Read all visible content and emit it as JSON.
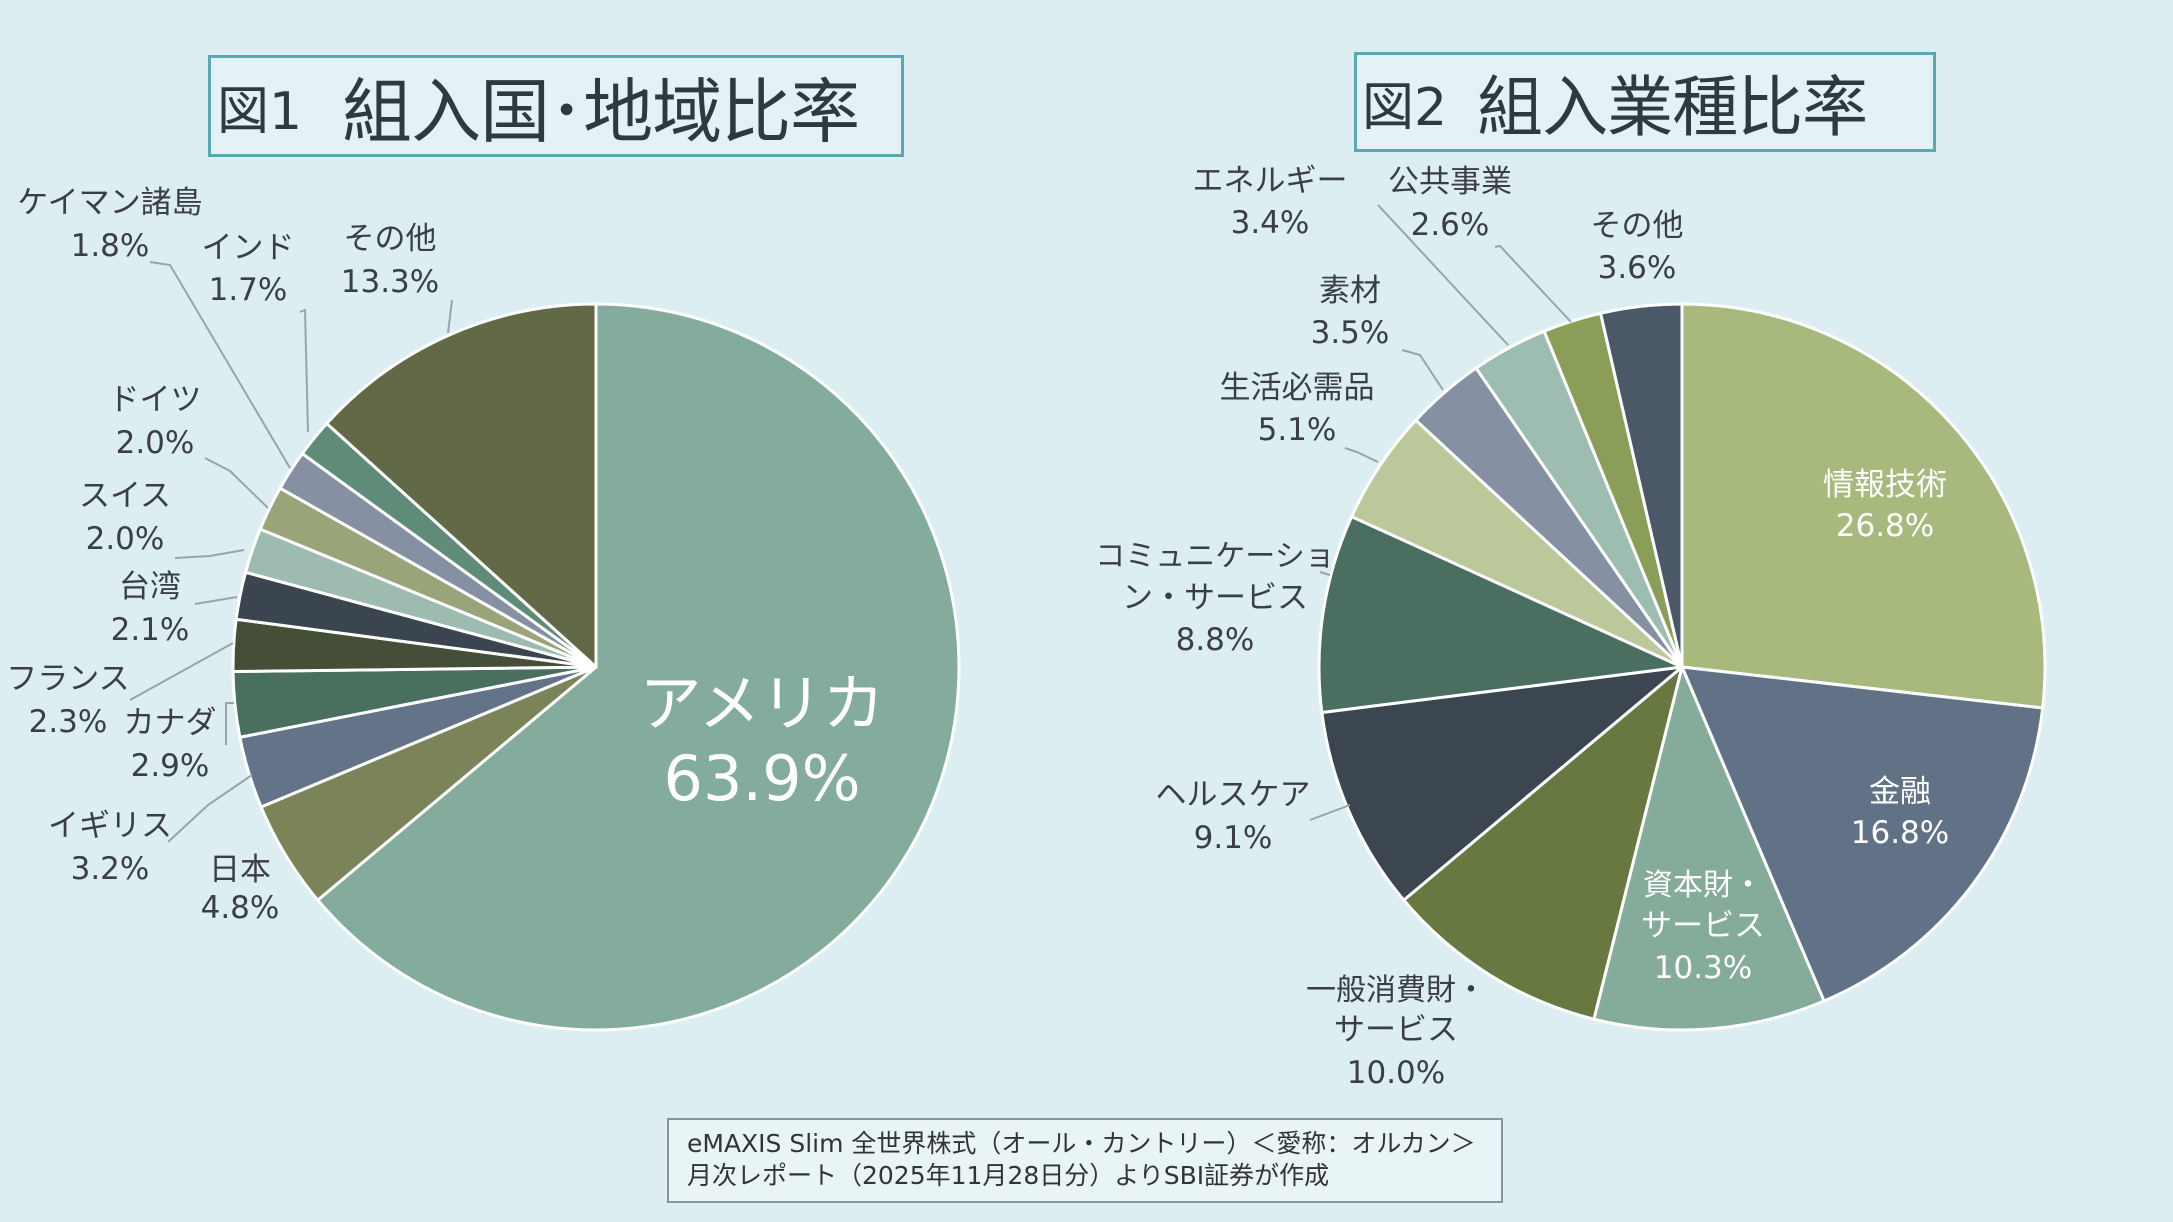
{
  "titles": {
    "chart1_prefix": "図1",
    "chart1_main": "組入国･地域比率",
    "chart2_prefix": "図2",
    "chart2_main": "組入業種比率"
  },
  "source": {
    "line1": "eMAXIS Slim 全世界株式（オール・カントリー）＜愛称：オルカン＞",
    "line2": "月次レポート（2025年11月28日分）よりSBI証券が作成"
  },
  "chart_data": [
    {
      "type": "pie",
      "title": "図1 組入国･地域比率",
      "start": "12 o'clock, clockwise",
      "slices": [
        {
          "label": "アメリカ",
          "value": 63.9,
          "display": "63.9%",
          "color": "#84ac9c"
        },
        {
          "label": "日本",
          "value": 4.8,
          "display": "4.8%",
          "color": "#7a8458"
        },
        {
          "label": "イギリス",
          "value": 3.2,
          "display": "3.2%",
          "color": "#647488"
        },
        {
          "label": "カナダ",
          "value": 2.9,
          "display": "2.9%",
          "color": "#49705f"
        },
        {
          "label": "フランス",
          "value": 2.3,
          "display": "2.3%",
          "color": "#454e36"
        },
        {
          "label": "台湾",
          "value": 2.1,
          "display": "2.1%",
          "color": "#3a4550"
        },
        {
          "label": "スイス",
          "value": 2.0,
          "display": "2.0%",
          "color": "#9dbcaf"
        },
        {
          "label": "ドイツ",
          "value": 2.0,
          "display": "2.0%",
          "color": "#99a479"
        },
        {
          "label": "ケイマン諸島",
          "value": 1.8,
          "display": "1.8%",
          "color": "#8590a2"
        },
        {
          "label": "インド",
          "value": 1.7,
          "display": "1.7%",
          "color": "#5e8c79"
        },
        {
          "label": "その他",
          "value": 13.3,
          "display": "13.3%",
          "color": "#626947"
        }
      ]
    },
    {
      "type": "pie",
      "title": "図2 組入業種比率",
      "start": "12 o'clock, clockwise",
      "slices": [
        {
          "label": "情報技術",
          "value": 26.8,
          "display": "26.8%",
          "color": "#a8b97e"
        },
        {
          "label": "金融",
          "value": 16.8,
          "display": "16.8%",
          "color": "#627286"
        },
        {
          "label": "資本財・サービス",
          "value": 10.3,
          "display": "10.3%",
          "color": "#85ab9b"
        },
        {
          "label": "一般消費財・サービス",
          "value": 10.0,
          "display": "10.0%",
          "color": "#677841"
        },
        {
          "label": "ヘルスケア",
          "value": 9.1,
          "display": "9.1%",
          "color": "#3b4651"
        },
        {
          "label": "コミュニケーション・サービス",
          "value": 8.8,
          "display": "8.8%",
          "color": "#4a6f60"
        },
        {
          "label": "生活必需品",
          "value": 5.1,
          "display": "5.1%",
          "color": "#bbc89a"
        },
        {
          "label": "素材",
          "value": 3.5,
          "display": "3.5%",
          "color": "#8591a3"
        },
        {
          "label": "エネルギー",
          "value": 3.4,
          "display": "3.4%",
          "color": "#9dbdb0"
        },
        {
          "label": "公共事業",
          "value": 2.6,
          "display": "2.6%",
          "color": "#8b9e58"
        },
        {
          "label": "その他",
          "value": 3.6,
          "display": "3.6%",
          "color": "#4b5868"
        }
      ]
    }
  ]
}
